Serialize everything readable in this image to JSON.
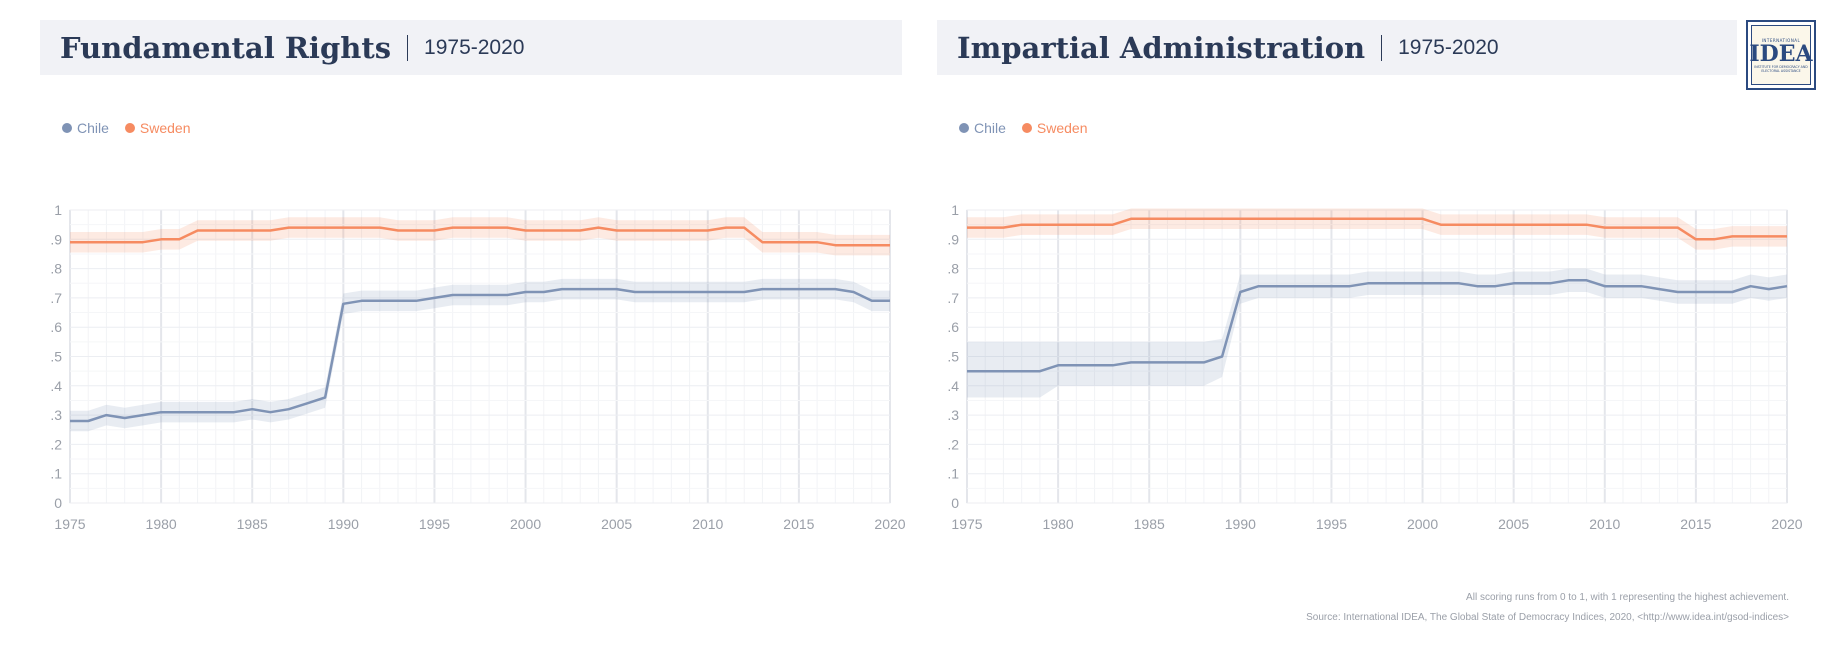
{
  "colors": {
    "chile": "#7f93b5",
    "sweden": "#f68b61",
    "title": "#2b3a57",
    "axis": "#9a9fa8"
  },
  "logo": {
    "top_text": "INTERNATIONAL",
    "mark": "IDEA",
    "bottom_text": "INSTITUTE FOR DEMOCRACY AND ELECTORAL ASSISTANCE"
  },
  "footer": {
    "note": "All scoring runs from 0 to 1, with 1 representing the highest achievement.",
    "source": "Source: International IDEA, The Global State of Democracy Indices, 2020, <http://www.idea.int/gsod-indices>"
  },
  "panels": [
    {
      "title": "Fundamental Rights",
      "period": "1975-2020",
      "legend": [
        "Chile",
        "Sweden"
      ]
    },
    {
      "title": "Impartial Administration",
      "period": "1975-2020",
      "legend": [
        "Chile",
        "Sweden"
      ]
    }
  ],
  "chart_data": [
    {
      "type": "line",
      "title": "Fundamental Rights",
      "subtitle": "1975-2020",
      "x": [
        1975,
        1976,
        1977,
        1978,
        1979,
        1980,
        1981,
        1982,
        1983,
        1984,
        1985,
        1986,
        1987,
        1988,
        1989,
        1990,
        1991,
        1992,
        1993,
        1994,
        1995,
        1996,
        1997,
        1998,
        1999,
        2000,
        2001,
        2002,
        2003,
        2004,
        2005,
        2006,
        2007,
        2008,
        2009,
        2010,
        2011,
        2012,
        2013,
        2014,
        2015,
        2016,
        2017,
        2018,
        2019,
        2020
      ],
      "xlim": [
        1975,
        2020
      ],
      "ylim": [
        0,
        1
      ],
      "x_ticks": [
        "1975",
        "1980",
        "1985",
        "1990",
        "1995",
        "2000",
        "2005",
        "2010",
        "2015",
        "2020"
      ],
      "y_ticks": [
        "0",
        ".1",
        ".2",
        ".3",
        ".4",
        ".5",
        ".6",
        ".7",
        ".8",
        ".9",
        "1"
      ],
      "legend_position": "top-left",
      "grid": true,
      "series": [
        {
          "name": "Chile",
          "values": [
            0.28,
            0.28,
            0.3,
            0.29,
            0.3,
            0.31,
            0.31,
            0.31,
            0.31,
            0.31,
            0.32,
            0.31,
            0.32,
            0.34,
            0.36,
            0.68,
            0.69,
            0.69,
            0.69,
            0.69,
            0.7,
            0.71,
            0.71,
            0.71,
            0.71,
            0.72,
            0.72,
            0.73,
            0.73,
            0.73,
            0.73,
            0.72,
            0.72,
            0.72,
            0.72,
            0.72,
            0.72,
            0.72,
            0.73,
            0.73,
            0.73,
            0.73,
            0.73,
            0.72,
            0.69,
            0.69
          ],
          "band": 0.035
        },
        {
          "name": "Sweden",
          "values": [
            0.89,
            0.89,
            0.89,
            0.89,
            0.89,
            0.9,
            0.9,
            0.93,
            0.93,
            0.93,
            0.93,
            0.93,
            0.94,
            0.94,
            0.94,
            0.94,
            0.94,
            0.94,
            0.93,
            0.93,
            0.93,
            0.94,
            0.94,
            0.94,
            0.94,
            0.93,
            0.93,
            0.93,
            0.93,
            0.94,
            0.93,
            0.93,
            0.93,
            0.93,
            0.93,
            0.93,
            0.94,
            0.94,
            0.89,
            0.89,
            0.89,
            0.89,
            0.88,
            0.88,
            0.88,
            0.88
          ],
          "band": 0.035
        }
      ]
    },
    {
      "type": "line",
      "title": "Impartial Administration",
      "subtitle": "1975-2020",
      "x": [
        1975,
        1976,
        1977,
        1978,
        1979,
        1980,
        1981,
        1982,
        1983,
        1984,
        1985,
        1986,
        1987,
        1988,
        1989,
        1990,
        1991,
        1992,
        1993,
        1994,
        1995,
        1996,
        1997,
        1998,
        1999,
        2000,
        2001,
        2002,
        2003,
        2004,
        2005,
        2006,
        2007,
        2008,
        2009,
        2010,
        2011,
        2012,
        2013,
        2014,
        2015,
        2016,
        2017,
        2018,
        2019,
        2020
      ],
      "xlim": [
        1975,
        2020
      ],
      "ylim": [
        0,
        1
      ],
      "x_ticks": [
        "1975",
        "1980",
        "1985",
        "1990",
        "1995",
        "2000",
        "2005",
        "2010",
        "2015",
        "2020"
      ],
      "y_ticks": [
        "0",
        ".1",
        ".2",
        ".3",
        ".4",
        ".5",
        ".6",
        ".7",
        ".8",
        ".9",
        "1"
      ],
      "legend_position": "top-left",
      "grid": true,
      "series": [
        {
          "name": "Chile",
          "values": [
            0.45,
            0.45,
            0.45,
            0.45,
            0.45,
            0.47,
            0.47,
            0.47,
            0.47,
            0.48,
            0.48,
            0.48,
            0.48,
            0.48,
            0.5,
            0.72,
            0.74,
            0.74,
            0.74,
            0.74,
            0.74,
            0.74,
            0.75,
            0.75,
            0.75,
            0.75,
            0.75,
            0.75,
            0.74,
            0.74,
            0.75,
            0.75,
            0.75,
            0.76,
            0.76,
            0.74,
            0.74,
            0.74,
            0.73,
            0.72,
            0.72,
            0.72,
            0.72,
            0.74,
            0.73,
            0.74
          ],
          "band_lower": [
            0.36,
            0.36,
            0.36,
            0.36,
            0.36,
            0.4,
            0.4,
            0.4,
            0.4,
            0.4,
            0.4,
            0.4,
            0.4,
            0.4,
            0.43,
            0.68,
            0.7,
            0.7,
            0.7,
            0.7,
            0.7,
            0.7,
            0.71,
            0.71,
            0.71,
            0.71,
            0.71,
            0.71,
            0.71,
            0.71,
            0.71,
            0.71,
            0.71,
            0.72,
            0.72,
            0.7,
            0.7,
            0.7,
            0.69,
            0.68,
            0.68,
            0.68,
            0.68,
            0.7,
            0.69,
            0.7
          ],
          "band_upper": [
            0.55,
            0.55,
            0.55,
            0.55,
            0.55,
            0.55,
            0.55,
            0.55,
            0.55,
            0.55,
            0.55,
            0.55,
            0.55,
            0.55,
            0.56,
            0.78,
            0.78,
            0.78,
            0.78,
            0.78,
            0.78,
            0.78,
            0.79,
            0.79,
            0.79,
            0.79,
            0.79,
            0.79,
            0.78,
            0.78,
            0.79,
            0.79,
            0.79,
            0.8,
            0.8,
            0.78,
            0.78,
            0.78,
            0.77,
            0.76,
            0.76,
            0.76,
            0.76,
            0.78,
            0.77,
            0.78
          ]
        },
        {
          "name": "Sweden",
          "values": [
            0.94,
            0.94,
            0.94,
            0.95,
            0.95,
            0.95,
            0.95,
            0.95,
            0.95,
            0.97,
            0.97,
            0.97,
            0.97,
            0.97,
            0.97,
            0.97,
            0.97,
            0.97,
            0.97,
            0.97,
            0.97,
            0.97,
            0.97,
            0.97,
            0.97,
            0.97,
            0.95,
            0.95,
            0.95,
            0.95,
            0.95,
            0.95,
            0.95,
            0.95,
            0.95,
            0.94,
            0.94,
            0.94,
            0.94,
            0.94,
            0.9,
            0.9,
            0.91,
            0.91,
            0.91,
            0.91
          ],
          "band": 0.035
        }
      ]
    }
  ]
}
